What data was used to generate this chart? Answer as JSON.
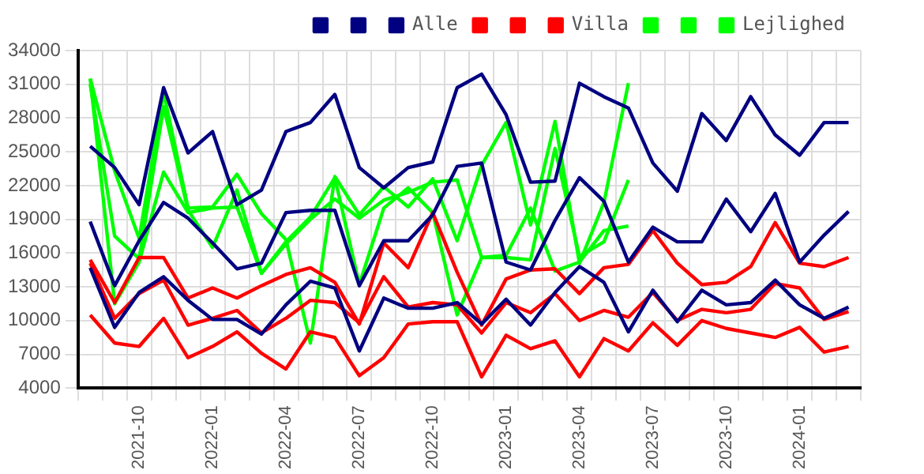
{
  "chart_data": {
    "type": "line",
    "categories": [
      null,
      null,
      "2021-10",
      null,
      null,
      "2022-01",
      null,
      null,
      "2022-04",
      null,
      null,
      "2022-07",
      null,
      null,
      "2022-10",
      null,
      null,
      "2023-01",
      null,
      null,
      "2023-04",
      null,
      null,
      "2023-07",
      null,
      null,
      "2023-10",
      null,
      null,
      "2024-01",
      null,
      null
    ],
    "ylim": [
      4000,
      34000
    ],
    "yticks": [
      4000,
      7000,
      10000,
      13000,
      16000,
      19000,
      22000,
      25000,
      28000,
      31000,
      34000
    ],
    "grid": true,
    "legend": "top right",
    "marker": "none",
    "line_style": "solid",
    "series": [
      {
        "color": "#000080",
        "values": [
          25500,
          23600,
          20300,
          30700,
          24900,
          26800,
          20300,
          21600,
          26800,
          27600,
          30100,
          23600,
          21800,
          23600,
          24100,
          30700,
          31900,
          28300,
          22300,
          22400,
          31100,
          29900,
          28900,
          24000,
          21500,
          28400,
          26000,
          29900,
          26500,
          24700,
          27600,
          27600
        ]
      },
      {
        "color": "#000080",
        "values": [
          18800,
          13100,
          17100,
          20500,
          19100,
          16900,
          14600,
          15100,
          19600,
          19800,
          19800,
          13100,
          17100,
          17100,
          19400,
          23700,
          24000,
          15200,
          14500,
          18900,
          22700,
          20600,
          15200,
          18300,
          17000,
          17000,
          20800,
          17900,
          21300,
          15200,
          17600,
          19700
        ]
      },
      {
        "name": "Alle",
        "color": "#000080",
        "values": [
          14700,
          9400,
          12500,
          13900,
          11800,
          10100,
          10100,
          8800,
          11400,
          13500,
          12900,
          7300,
          12000,
          11100,
          11100,
          11600,
          9700,
          11900,
          9600,
          12500,
          14800,
          13400,
          9000,
          12700,
          9900,
          12700,
          11400,
          11600,
          13600,
          11400,
          10200,
          11200
        ]
      },
      {
        "color": "#ff0000",
        "values": [
          15400,
          11600,
          15600,
          15600,
          12000,
          12900,
          12000,
          13100,
          14100,
          14700,
          13400,
          9700,
          16900,
          14700,
          19600,
          14300,
          9600,
          13700,
          14500,
          14600,
          12400,
          14700,
          15000,
          18000,
          15100,
          13200,
          13400,
          14800,
          18700,
          15100,
          14800,
          15600
        ]
      },
      {
        "color": "#ff0000",
        "values": [
          15100,
          10200,
          12400,
          13600,
          9600,
          10200,
          10900,
          8900,
          10200,
          11800,
          11600,
          9800,
          13900,
          11200,
          11600,
          11400,
          8900,
          11600,
          10700,
          12400,
          10000,
          10900,
          10300,
          12500,
          10000,
          11000,
          10700,
          11000,
          13300,
          12900,
          10100,
          10800
        ]
      },
      {
        "name": "Villa",
        "color": "#ff0000",
        "values": [
          10500,
          8000,
          7700,
          10200,
          6700,
          7700,
          9000,
          7100,
          5700,
          9000,
          8500,
          5100,
          6700,
          9700,
          9900,
          9900,
          5000,
          8700,
          7500,
          8200,
          5000,
          8400,
          7300,
          9800,
          7800,
          10000,
          9300,
          8900,
          8500,
          9400,
          7200,
          7700
        ]
      },
      {
        "color": "#00ff00",
        "values": [
          31500,
          23300,
          17300,
          30300,
          20000,
          20100,
          23000,
          19500,
          17200,
          8000,
          22800,
          19400,
          21900,
          20100,
          22600,
          17100,
          23800,
          27600,
          18500,
          27700,
          15100,
          20500,
          31100,
          null,
          null,
          null,
          null,
          null,
          null,
          null,
          null,
          null
        ]
      },
      {
        "color": "#00ff00",
        "values": [
          31000,
          17500,
          15500,
          29000,
          19800,
          16500,
          21600,
          14200,
          17000,
          19200,
          22700,
          13200,
          20000,
          21800,
          19600,
          10500,
          15600,
          15600,
          15400,
          25300,
          15700,
          17000,
          22500,
          null,
          null,
          null,
          null,
          null,
          null,
          null,
          null,
          null
        ]
      },
      {
        "name": "Lejlighed",
        "color": "#00ff00",
        "values": [
          31500,
          11500,
          15200,
          23200,
          19600,
          20000,
          20100,
          14200,
          16800,
          19000,
          20800,
          19100,
          20700,
          21400,
          22300,
          22500,
          15600,
          15800,
          20000,
          14400,
          15200,
          18000,
          18400,
          null,
          null,
          null,
          null,
          null,
          null,
          null,
          null,
          null
        ]
      }
    ]
  }
}
